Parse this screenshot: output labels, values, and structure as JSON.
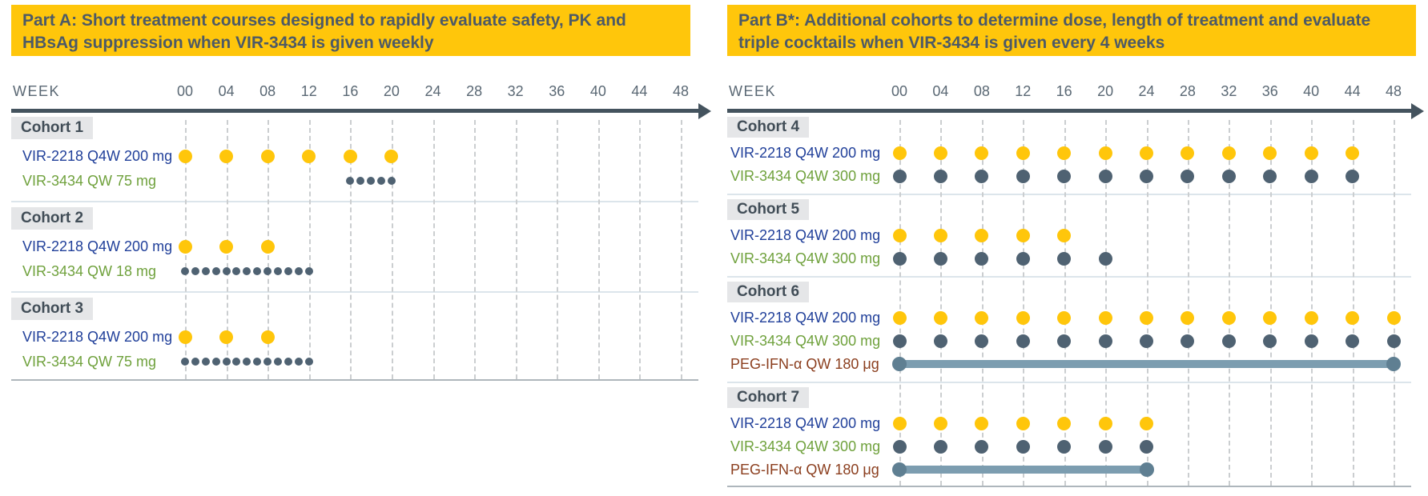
{
  "colors": {
    "banner_bg": "#FFC60B",
    "banner_text": "#4D5A66",
    "axis": "#44535E",
    "tick_text": "#5A6874",
    "cohort_chip_bg": "#E5E6E8",
    "cohort_text": "#414D57",
    "vir2218_label": "#21409A",
    "vir3434_label": "#6FA13C",
    "pegifn_label": "#8B3E1E",
    "dose_dot_yellow": "#FFC60B",
    "dose_dot_dark": "#4F6272",
    "duration_bar": "#7C9DB0",
    "duration_bar_cap": "#5F7F92",
    "gridline": "#CBCED0"
  },
  "parts": [
    {
      "banner_title": "Part A: Short treatment courses designed to rapidly evaluate safety, PK and HBsAg suppression when VIR-3434 is given weekly",
      "week_axis": {
        "label": "WEEK",
        "ticks": [
          "00",
          "04",
          "08",
          "12",
          "16",
          "20",
          "24",
          "28",
          "32",
          "36",
          "40",
          "44",
          "48"
        ]
      },
      "cohorts": [
        {
          "name": "Cohort 1",
          "rows": [
            {
              "label": "VIR-2218 Q4W 200 mg",
              "label_color": "#21409A",
              "marker": "yellow",
              "dose_weeks": [
                0,
                4,
                8,
                12,
                16,
                20
              ]
            },
            {
              "label": "VIR-3434 QW 75 mg",
              "label_color": "#6FA13C",
              "marker": "small",
              "dose_weeks": [
                16,
                17,
                18,
                19,
                20
              ]
            }
          ]
        },
        {
          "name": "Cohort 2",
          "rows": [
            {
              "label": "VIR-2218 Q4W 200 mg",
              "label_color": "#21409A",
              "marker": "yellow",
              "dose_weeks": [
                0,
                4,
                8
              ]
            },
            {
              "label": "VIR-3434 QW 18 mg",
              "label_color": "#6FA13C",
              "marker": "small",
              "dose_weeks": [
                0,
                1,
                2,
                3,
                4,
                5,
                6,
                7,
                8,
                9,
                10,
                11,
                12
              ]
            }
          ]
        },
        {
          "name": "Cohort 3",
          "rows": [
            {
              "label": "VIR-2218 Q4W 200 mg",
              "label_color": "#21409A",
              "marker": "yellow",
              "dose_weeks": [
                0,
                4,
                8
              ]
            },
            {
              "label": "VIR-3434 QW 75 mg",
              "label_color": "#6FA13C",
              "marker": "small",
              "dose_weeks": [
                0,
                1,
                2,
                3,
                4,
                5,
                6,
                7,
                8,
                9,
                10,
                11,
                12
              ]
            }
          ]
        }
      ]
    },
    {
      "banner_title": "Part B*: Additional cohorts to determine dose, length of treatment and evaluate triple cocktails when VIR-3434 is given every 4 weeks",
      "week_axis": {
        "label": "WEEK",
        "ticks": [
          "00",
          "04",
          "08",
          "12",
          "16",
          "20",
          "24",
          "28",
          "32",
          "36",
          "40",
          "44",
          "48"
        ]
      },
      "cohorts": [
        {
          "name": "Cohort 4",
          "rows": [
            {
              "label": "VIR-2218 Q4W 200 mg",
              "label_color": "#21409A",
              "marker": "yellow",
              "dose_weeks": [
                0,
                4,
                8,
                12,
                16,
                20,
                24,
                28,
                32,
                36,
                40,
                44
              ]
            },
            {
              "label": "VIR-3434 Q4W 300 mg",
              "label_color": "#6FA13C",
              "marker": "dark",
              "dose_weeks": [
                0,
                4,
                8,
                12,
                16,
                20,
                24,
                28,
                32,
                36,
                40,
                44
              ]
            }
          ]
        },
        {
          "name": "Cohort 5",
          "rows": [
            {
              "label": "VIR-2218 Q4W 200 mg",
              "label_color": "#21409A",
              "marker": "yellow",
              "dose_weeks": [
                0,
                4,
                8,
                12,
                16
              ]
            },
            {
              "label": "VIR-3434 Q4W 300 mg",
              "label_color": "#6FA13C",
              "marker": "dark",
              "dose_weeks": [
                0,
                4,
                8,
                12,
                16,
                20
              ]
            }
          ]
        },
        {
          "name": "Cohort 6",
          "rows": [
            {
              "label": "VIR-2218 Q4W 200 mg",
              "label_color": "#21409A",
              "marker": "yellow",
              "dose_weeks": [
                0,
                4,
                8,
                12,
                16,
                20,
                24,
                28,
                32,
                36,
                40,
                44,
                48
              ]
            },
            {
              "label": "VIR-3434 Q4W 300 mg",
              "label_color": "#6FA13C",
              "marker": "dark",
              "dose_weeks": [
                0,
                4,
                8,
                12,
                16,
                20,
                24,
                28,
                32,
                36,
                40,
                44,
                48
              ]
            },
            {
              "label": "PEG-IFN-α QW 180 μg",
              "label_color": "#8B3E1E",
              "marker": "bar",
              "bar_start_week": 0,
              "bar_end_week": 48
            }
          ]
        },
        {
          "name": "Cohort 7",
          "rows": [
            {
              "label": "VIR-2218 Q4W 200 mg",
              "label_color": "#21409A",
              "marker": "yellow",
              "dose_weeks": [
                0,
                4,
                8,
                12,
                16,
                20,
                24
              ]
            },
            {
              "label": "VIR-3434 Q4W 300 mg",
              "label_color": "#6FA13C",
              "marker": "dark",
              "dose_weeks": [
                0,
                4,
                8,
                12,
                16,
                20,
                24
              ]
            },
            {
              "label": "PEG-IFN-α QW 180 μg",
              "label_color": "#8B3E1E",
              "marker": "bar",
              "bar_start_week": 0,
              "bar_end_week": 24
            }
          ]
        }
      ]
    }
  ]
}
